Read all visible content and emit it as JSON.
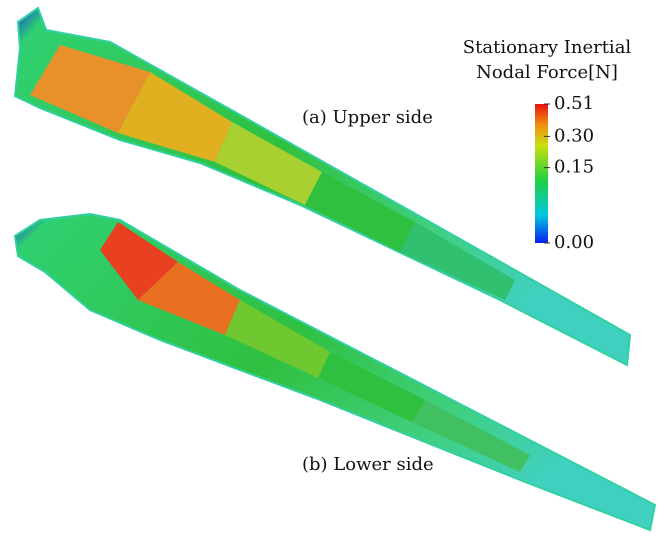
{
  "legend": {
    "title_lines": [
      "Stationary Inertial",
      "Nodal Force[N]"
    ],
    "ticks": [
      {
        "value": 0.51,
        "label": "0.51"
      },
      {
        "value": 0.3,
        "label": "0.30"
      },
      {
        "value": 0.15,
        "label": "0.15"
      },
      {
        "value": 0,
        "label": "0.00"
      }
    ]
  },
  "captions": [
    "(a) Upper side",
    "(b) Lower side"
  ]
}
